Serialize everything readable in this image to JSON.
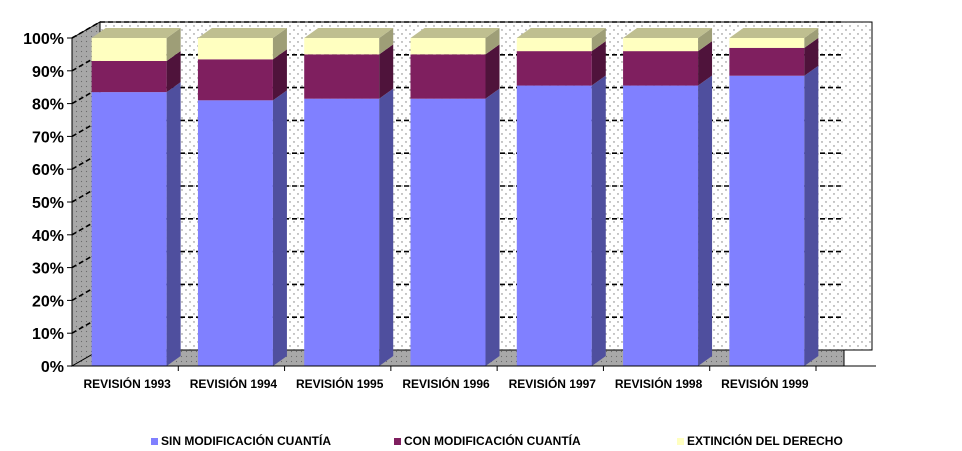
{
  "chart_data": {
    "type": "bar",
    "stacked": true,
    "percent": true,
    "three_d": true,
    "categories": [
      "REVISIÓN 1993",
      "REVISIÓN 1994",
      "REVISIÓN 1995",
      "REVISIÓN 1996",
      "REVISIÓN 1997",
      "REVISIÓN 1998",
      "REVISIÓN 1999"
    ],
    "series": [
      {
        "name": "SIN MODIFICACIÓN CUANTÍA",
        "color": "#8080FF",
        "values": [
          83.5,
          81.0,
          81.5,
          81.5,
          85.5,
          85.5,
          88.5
        ]
      },
      {
        "name": "CON MODIFICACIÓN CUANTÍA",
        "color": "#7F1F5F",
        "values": [
          9.5,
          12.5,
          13.5,
          13.5,
          10.5,
          10.5,
          8.5
        ]
      },
      {
        "name": "EXTINCIÓN DEL DERECHO",
        "color": "#FFFFC0",
        "values": [
          7.0,
          6.5,
          5.0,
          5.0,
          4.0,
          4.0,
          3.0
        ]
      }
    ],
    "y_ticks": [
      "0%",
      "10%",
      "20%",
      "30%",
      "40%",
      "50%",
      "60%",
      "70%",
      "80%",
      "90%",
      "100%"
    ],
    "ylim": [
      0,
      100
    ],
    "grid": true,
    "legend_position": "bottom"
  }
}
